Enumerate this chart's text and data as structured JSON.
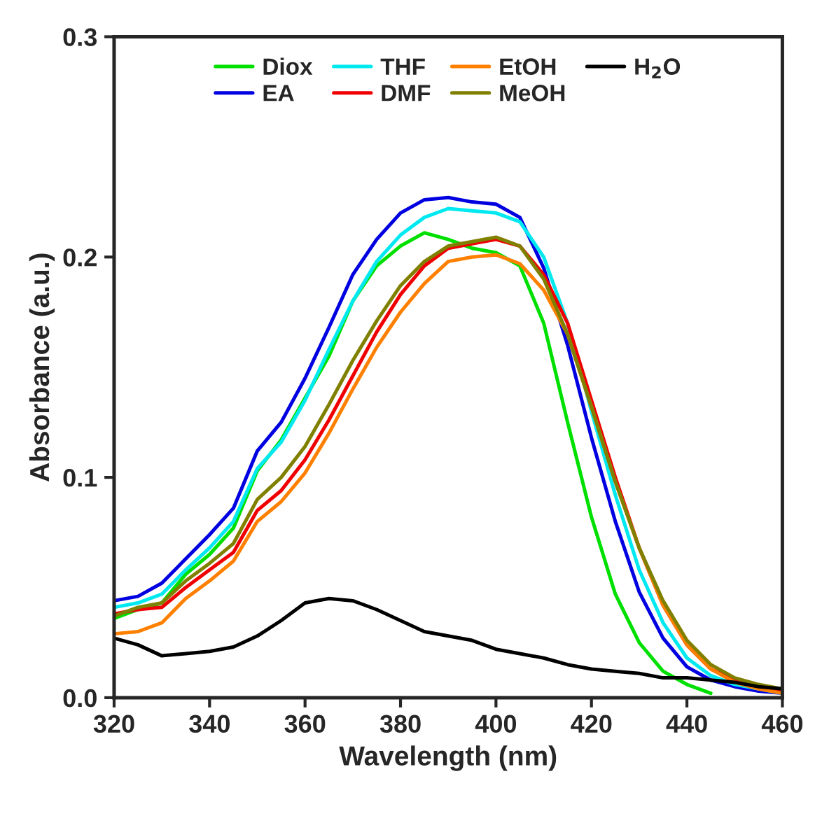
{
  "chart_data": {
    "type": "line",
    "xlabel": "Wavelength (nm)",
    "ylabel": "Absorbance (a.u.)",
    "x": [
      320,
      325,
      330,
      335,
      340,
      345,
      350,
      355,
      360,
      365,
      370,
      375,
      380,
      385,
      390,
      395,
      400,
      405,
      410,
      415,
      420,
      425,
      430,
      435,
      440,
      445,
      450,
      455,
      460
    ],
    "series": [
      {
        "name": "Diox",
        "color": "#00e000",
        "values": [
          0.036,
          0.04,
          0.043,
          0.056,
          0.065,
          0.077,
          0.103,
          0.117,
          0.136,
          0.155,
          0.18,
          0.196,
          0.205,
          0.211,
          0.208,
          0.204,
          0.202,
          0.196,
          0.17,
          0.125,
          0.082,
          0.047,
          0.025,
          0.012,
          0.006,
          0.002,
          null,
          null,
          null
        ]
      },
      {
        "name": "EA",
        "color": "#0000e0",
        "values": [
          0.044,
          0.046,
          0.052,
          0.063,
          0.074,
          0.086,
          0.112,
          0.125,
          0.145,
          0.168,
          0.192,
          0.208,
          0.22,
          0.226,
          0.227,
          0.225,
          0.224,
          0.218,
          0.195,
          0.16,
          0.118,
          0.08,
          0.048,
          0.027,
          0.014,
          0.008,
          0.005,
          0.003,
          0.002
        ]
      },
      {
        "name": "THF",
        "color": "#00e8f0",
        "values": [
          0.041,
          0.043,
          0.047,
          0.058,
          0.068,
          0.08,
          0.104,
          0.116,
          0.135,
          0.158,
          0.18,
          0.198,
          0.21,
          0.218,
          0.222,
          0.221,
          0.22,
          0.216,
          0.2,
          0.17,
          0.13,
          0.092,
          0.058,
          0.034,
          0.018,
          0.01,
          0.006,
          0.004,
          0.002
        ]
      },
      {
        "name": "DMF",
        "color": "#f00000",
        "values": [
          0.038,
          0.04,
          0.041,
          0.05,
          0.058,
          0.066,
          0.085,
          0.094,
          0.108,
          0.126,
          0.146,
          0.166,
          0.183,
          0.196,
          0.204,
          0.206,
          0.208,
          0.205,
          0.192,
          0.17,
          0.135,
          0.1,
          0.068,
          0.042,
          0.024,
          0.013,
          0.008,
          0.005,
          0.003
        ]
      },
      {
        "name": "EtOH",
        "color": "#ff8000",
        "values": [
          0.029,
          0.03,
          0.034,
          0.045,
          0.053,
          0.062,
          0.08,
          0.089,
          0.102,
          0.12,
          0.14,
          0.159,
          0.175,
          0.188,
          0.198,
          0.2,
          0.201,
          0.197,
          0.185,
          0.165,
          0.132,
          0.098,
          0.068,
          0.042,
          0.024,
          0.013,
          0.007,
          0.004,
          0.002
        ]
      },
      {
        "name": "MeOH",
        "color": "#808000",
        "values": [
          0.037,
          0.041,
          0.043,
          0.053,
          0.061,
          0.07,
          0.09,
          0.1,
          0.114,
          0.133,
          0.153,
          0.171,
          0.187,
          0.198,
          0.205,
          0.207,
          0.209,
          0.205,
          0.19,
          0.165,
          0.132,
          0.098,
          0.068,
          0.044,
          0.026,
          0.015,
          0.009,
          0.006,
          0.004
        ]
      },
      {
        "name": "H$_{2}$O",
        "color": "#000000",
        "values": [
          0.027,
          0.024,
          0.019,
          0.02,
          0.021,
          0.023,
          0.028,
          0.035,
          0.043,
          0.045,
          0.044,
          0.04,
          0.035,
          0.03,
          0.028,
          0.026,
          0.022,
          0.02,
          0.018,
          0.015,
          0.013,
          0.012,
          0.011,
          0.009,
          0.009,
          0.008,
          0.007,
          0.005,
          0.004
        ]
      }
    ],
    "xlim": [
      320,
      460
    ],
    "xticks": [
      320,
      340,
      360,
      380,
      400,
      420,
      440,
      460
    ],
    "ylim": [
      0,
      0.3
    ],
    "yticks": [
      {
        "value": 0,
        "label": "0.0"
      },
      {
        "value": 0.1,
        "label": "0.1"
      },
      {
        "value": 0.2,
        "label": "0.2"
      },
      {
        "value": 0.3,
        "label": "0.3"
      }
    ],
    "grid": false,
    "legend": "top",
    "marker": "none",
    "line_style": "solid"
  }
}
